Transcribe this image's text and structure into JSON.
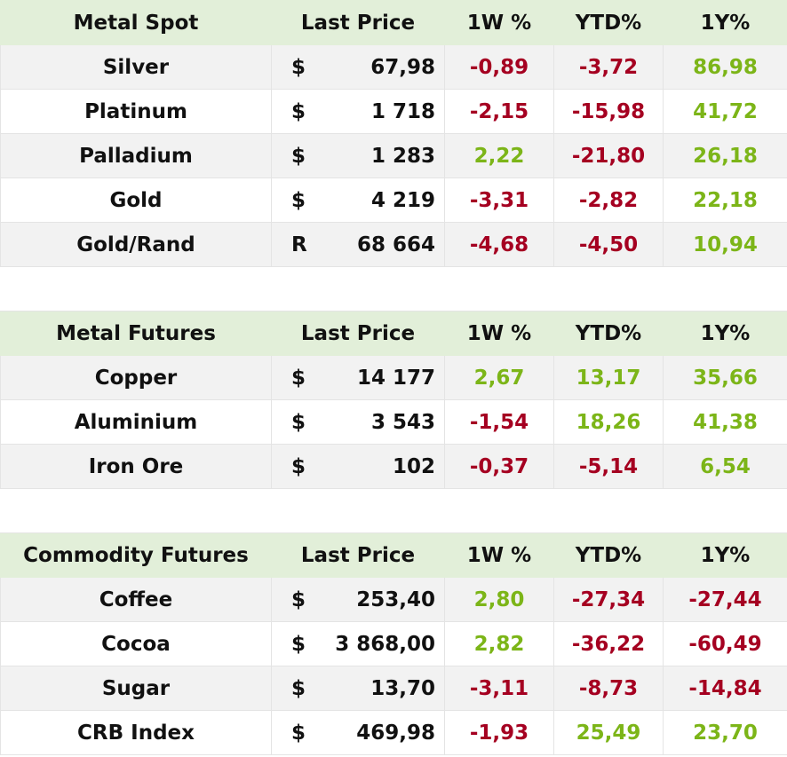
{
  "sections": [
    {
      "header": [
        "Metal Spot",
        "Last Price",
        "1W %",
        "YTD%",
        "1Y%"
      ],
      "rows": [
        [
          "Silver",
          "$",
          "67,98",
          "-0,89",
          "-3,72",
          "86,98"
        ],
        [
          "Platinum",
          "$",
          "1 718",
          "-2,15",
          "-15,98",
          "41,72"
        ],
        [
          "Palladium",
          "$",
          "1 283",
          "2,22",
          "-21,80",
          "26,18"
        ],
        [
          "Gold",
          "$",
          "4 219",
          "-3,31",
          "-2,82",
          "22,18"
        ],
        [
          "Gold/Rand",
          "R",
          "68 664",
          "-4,68",
          "-4,50",
          "10,94"
        ]
      ]
    },
    {
      "header": [
        "Metal Futures",
        "Last Price",
        "1W %",
        "YTD%",
        "1Y%"
      ],
      "rows": [
        [
          "Copper",
          "$",
          "14 177",
          "2,67",
          "13,17",
          "35,66"
        ],
        [
          "Aluminium",
          "$",
          "3 543",
          "-1,54",
          "18,26",
          "41,38"
        ],
        [
          "Iron Ore",
          "$",
          "102",
          "-0,37",
          "-5,14",
          "6,54"
        ]
      ]
    },
    {
      "header": [
        "Commodity Futures",
        "Last Price",
        "1W %",
        "YTD%",
        "1Y%"
      ],
      "rows": [
        [
          "Coffee",
          "$",
          "253,40",
          "2,80",
          "-27,34",
          "-27,44"
        ],
        [
          "Cocoa",
          "$",
          "3 868,00",
          "2,82",
          "-36,22",
          "-60,49"
        ],
        [
          "Sugar",
          "$",
          "13,70",
          "-3,11",
          "-8,73",
          "-14,84"
        ],
        [
          "CRB Index",
          "$",
          "469,98",
          "-1,93",
          "25,49",
          "23,70"
        ]
      ]
    }
  ]
}
